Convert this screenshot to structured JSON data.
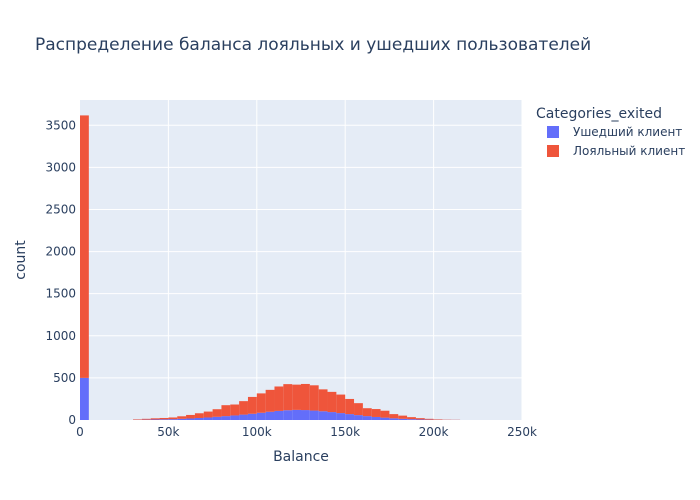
{
  "chart_data": {
    "type": "bar",
    "title": "Распределение баланса лояльных и ушедших пользователей",
    "xlabel": "Balance",
    "ylabel": "count",
    "barmode": "stack",
    "bin_width": 5000,
    "xlim": [
      0,
      250000
    ],
    "ylim": [
      0,
      3800
    ],
    "x_tick_labels": [
      "0",
      "50k",
      "100k",
      "150k",
      "200k",
      "250k"
    ],
    "x_tick_values": [
      0,
      50000,
      100000,
      150000,
      200000,
      250000
    ],
    "y_tick_values": [
      0,
      500,
      1000,
      1500,
      2000,
      2500,
      3000,
      3500
    ],
    "grid": true,
    "legend": {
      "title": "Categories_exited",
      "placement": "right"
    },
    "x": [
      0,
      30000,
      35000,
      40000,
      45000,
      50000,
      55000,
      60000,
      65000,
      70000,
      75000,
      80000,
      85000,
      90000,
      95000,
      100000,
      105000,
      110000,
      115000,
      120000,
      125000,
      130000,
      135000,
      140000,
      145000,
      150000,
      155000,
      160000,
      165000,
      170000,
      175000,
      180000,
      185000,
      190000,
      195000,
      200000,
      205000,
      210000
    ],
    "series": [
      {
        "name": "Ушедший клиент",
        "color": "#636efa",
        "values": [
          500,
          2,
          4,
          6,
          8,
          10,
          14,
          18,
          24,
          30,
          38,
          46,
          54,
          64,
          74,
          86,
          98,
          108,
          116,
          120,
          118,
          112,
          104,
          94,
          82,
          70,
          58,
          46,
          36,
          28,
          20,
          14,
          10,
          6,
          4,
          2,
          1,
          1
        ]
      },
      {
        "name": "Лояльный клиент",
        "color": "#ef553b",
        "values": [
          3117,
          6,
          10,
          14,
          16,
          20,
          30,
          42,
          56,
          70,
          90,
          130,
          130,
          160,
          200,
          230,
          260,
          290,
          310,
          300,
          310,
          300,
          260,
          240,
          220,
          180,
          142,
          94,
          94,
          82,
          50,
          38,
          24,
          16,
          10,
          6,
          3,
          2
        ]
      }
    ]
  }
}
